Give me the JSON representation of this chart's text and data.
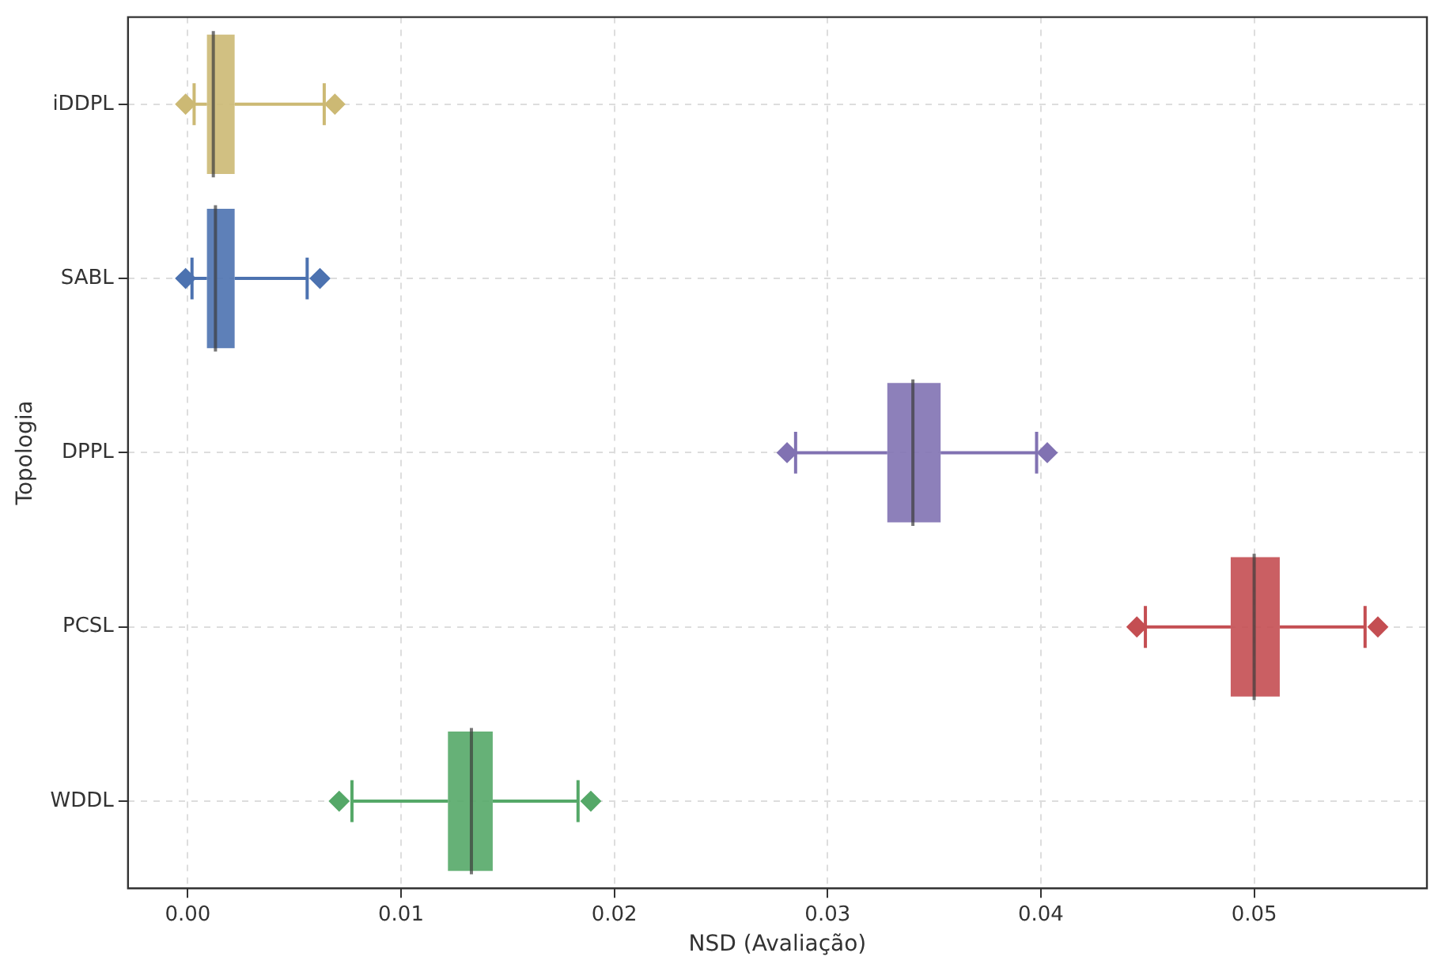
{
  "chart_data": {
    "type": "box",
    "orientation": "horizontal",
    "xlabel": "NSD (Avaliação)",
    "ylabel": "Topologia",
    "categories": [
      "iDDPL",
      "SABL",
      "DPPL",
      "PCSL",
      "WDDL"
    ],
    "series": [
      {
        "color": "#ccb974",
        "boxes": [
          {
            "low": 0.0003,
            "q1": 0.0009,
            "median": 0.0012,
            "q3": 0.0022,
            "high": 0.0064,
            "outliers": [
              -0.0001,
              0.0069
            ]
          },
          null,
          null,
          null,
          null
        ]
      },
      {
        "color": "#4c72b0",
        "boxes": [
          null,
          {
            "low": 0.0002,
            "q1": 0.0009,
            "median": 0.0013,
            "q3": 0.0022,
            "high": 0.0056,
            "outliers": [
              -0.0001,
              0.0062
            ]
          },
          null,
          null,
          null
        ]
      },
      {
        "color": "#8172b2",
        "boxes": [
          null,
          null,
          {
            "low": 0.0285,
            "q1": 0.0328,
            "median": 0.034,
            "q3": 0.0353,
            "high": 0.0398,
            "outliers": [
              0.0281,
              0.0403
            ]
          },
          null,
          null
        ]
      },
      {
        "color": "#c44e52",
        "boxes": [
          null,
          null,
          null,
          {
            "low": 0.0449,
            "q1": 0.0489,
            "median": 0.05,
            "q3": 0.0512,
            "high": 0.0552,
            "outliers": [
              0.0445,
              0.0558
            ]
          },
          null
        ]
      },
      {
        "color": "#55a868",
        "boxes": [
          null,
          null,
          null,
          null,
          {
            "low": 0.0077,
            "q1": 0.0122,
            "median": 0.0133,
            "q3": 0.0143,
            "high": 0.0183,
            "outliers": [
              0.0071,
              0.0189
            ]
          }
        ]
      }
    ],
    "xlim": [
      -0.0028,
      0.0581
    ],
    "xticks": [
      {
        "value": 0,
        "label": "0.00"
      },
      {
        "value": 0.01,
        "label": "0.01"
      },
      {
        "value": 0.02,
        "label": "0.02"
      },
      {
        "value": 0.03,
        "label": "0.03"
      },
      {
        "value": 0.04,
        "label": "0.04"
      },
      {
        "value": 0.05,
        "label": "0.05"
      }
    ],
    "grid": true,
    "legend": false
  }
}
